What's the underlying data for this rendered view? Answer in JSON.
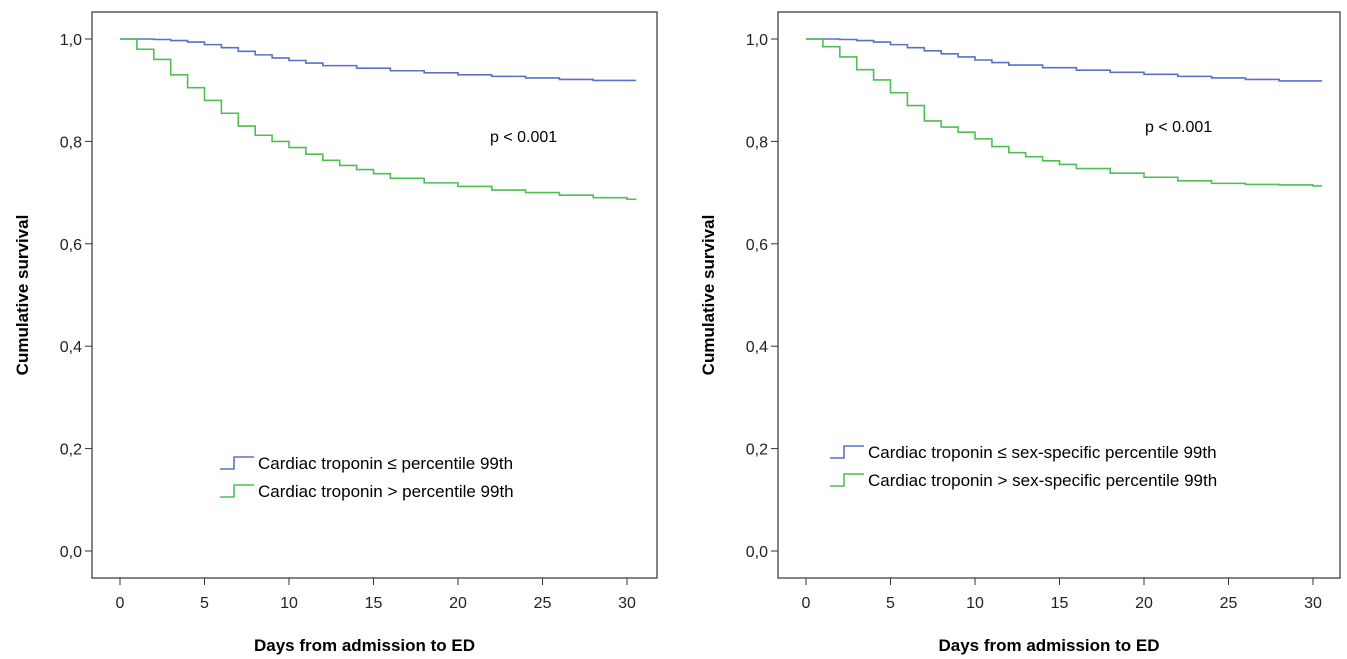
{
  "chart_data": [
    {
      "type": "line",
      "step": true,
      "xlabel": "Days from admission to ED",
      "ylabel": "Cumulative survival",
      "xlim": [
        0,
        30
      ],
      "ylim": [
        0,
        1
      ],
      "xticks": [
        "0",
        "5",
        "10",
        "15",
        "20",
        "25",
        "30"
      ],
      "yticks": [
        "0,0",
        "0,2",
        "0,4",
        "0,6",
        "0,8",
        "1,0"
      ],
      "grid": false,
      "legend_position": "bottom-right",
      "annotation": "p < 0.001",
      "series": [
        {
          "name": "Cardiac troponin ≤ percentile 99th",
          "color": "#5b6fc9",
          "x": [
            0,
            2,
            3,
            4,
            5,
            6,
            7,
            8,
            9,
            10,
            11,
            12,
            14,
            16,
            18,
            20,
            22,
            24,
            26,
            28,
            30.5
          ],
          "y": [
            1.0,
            0.999,
            0.997,
            0.994,
            0.989,
            0.983,
            0.976,
            0.969,
            0.963,
            0.958,
            0.953,
            0.948,
            0.943,
            0.938,
            0.934,
            0.93,
            0.927,
            0.924,
            0.921,
            0.919,
            0.918
          ]
        },
        {
          "name": "Cardiac troponin > percentile 99th",
          "color": "#4fbf53",
          "x": [
            0,
            1,
            2,
            3,
            4,
            5,
            6,
            7,
            8,
            9,
            10,
            11,
            12,
            13,
            14,
            15,
            16,
            18,
            20,
            22,
            24,
            26,
            28,
            30,
            30.5
          ],
          "y": [
            1.0,
            0.98,
            0.96,
            0.93,
            0.905,
            0.88,
            0.855,
            0.83,
            0.812,
            0.8,
            0.788,
            0.775,
            0.763,
            0.753,
            0.745,
            0.737,
            0.728,
            0.719,
            0.712,
            0.705,
            0.7,
            0.695,
            0.69,
            0.687,
            0.685
          ]
        }
      ]
    },
    {
      "type": "line",
      "step": true,
      "xlabel": "Days from admission to ED",
      "ylabel": "Cumulative survival",
      "xlim": [
        0,
        30
      ],
      "ylim": [
        0,
        1
      ],
      "xticks": [
        "0",
        "5",
        "10",
        "15",
        "20",
        "25",
        "30"
      ],
      "yticks": [
        "0,0",
        "0,2",
        "0,4",
        "0,6",
        "0,8",
        "1,0"
      ],
      "grid": false,
      "legend_position": "bottom-right",
      "annotation": "p < 0.001",
      "series": [
        {
          "name": "Cardiac troponin ≤ sex-specific percentile 99th",
          "color": "#5b6fc9",
          "x": [
            0,
            2,
            3,
            4,
            5,
            6,
            7,
            8,
            9,
            10,
            11,
            12,
            14,
            16,
            18,
            20,
            22,
            24,
            26,
            28,
            30.5
          ],
          "y": [
            1.0,
            0.999,
            0.997,
            0.994,
            0.989,
            0.983,
            0.977,
            0.971,
            0.965,
            0.959,
            0.954,
            0.949,
            0.944,
            0.939,
            0.935,
            0.931,
            0.927,
            0.924,
            0.921,
            0.918,
            0.917
          ]
        },
        {
          "name": "Cardiac troponin > sex-specific percentile 99th",
          "color": "#4fbf53",
          "x": [
            0,
            1,
            2,
            3,
            4,
            5,
            6,
            7,
            8,
            9,
            10,
            11,
            12,
            13,
            14,
            15,
            16,
            18,
            20,
            22,
            24,
            26,
            28,
            30,
            30.5
          ],
          "y": [
            1.0,
            0.985,
            0.965,
            0.94,
            0.92,
            0.895,
            0.87,
            0.84,
            0.828,
            0.818,
            0.805,
            0.79,
            0.778,
            0.77,
            0.762,
            0.755,
            0.747,
            0.738,
            0.73,
            0.723,
            0.718,
            0.716,
            0.715,
            0.713,
            0.712
          ]
        }
      ]
    }
  ]
}
